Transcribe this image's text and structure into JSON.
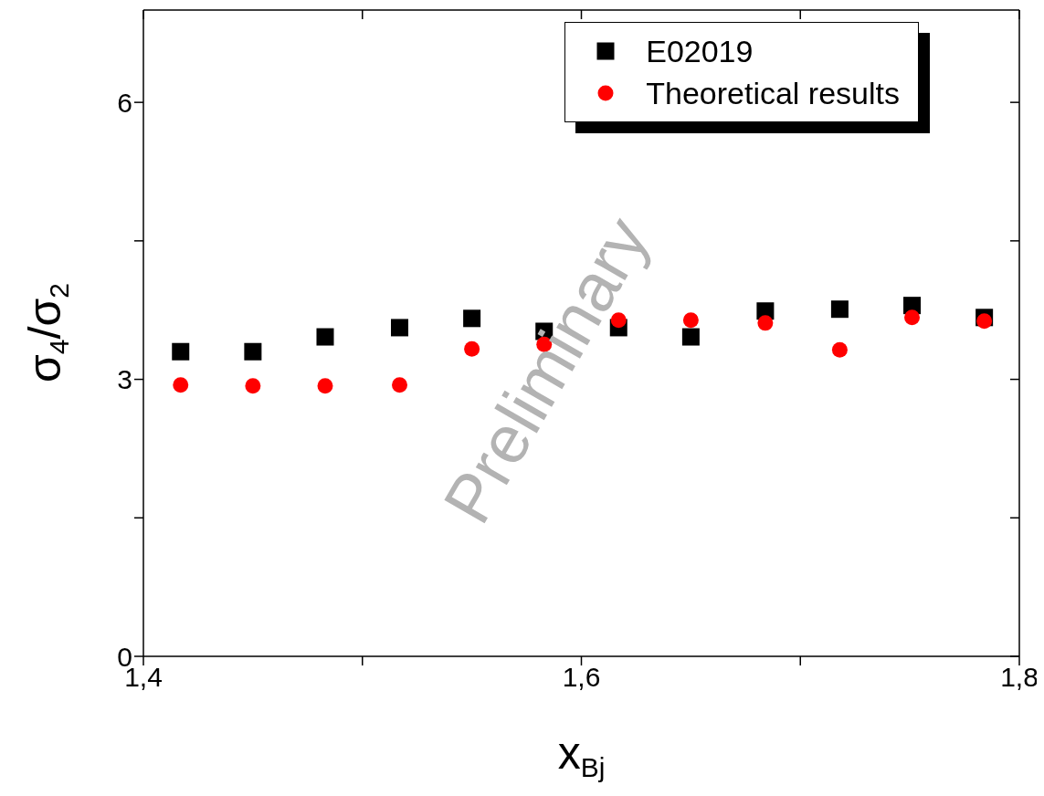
{
  "chart_data": {
    "type": "scatter",
    "xlabel": "x$_{Bj}$",
    "ylabel": "σ$_{4}$/σ$_{2}$",
    "xlim": [
      1.4,
      1.8
    ],
    "ylim": [
      0,
      7
    ],
    "xticks": [
      {
        "value": 1.4,
        "label": "1,4"
      },
      {
        "value": 1.5,
        "label": null
      },
      {
        "value": 1.6,
        "label": "1,6"
      },
      {
        "value": 1.7,
        "label": null
      },
      {
        "value": 1.8,
        "label": "1,8"
      }
    ],
    "yticks": [
      0,
      {
        "value": 1.5,
        "label": null
      },
      3,
      {
        "value": 4.5,
        "label": null
      },
      6
    ],
    "grid": false,
    "legend": "top right",
    "annotations": [
      "Preliminary"
    ],
    "series": [
      {
        "name": "E02019",
        "color": "#000000",
        "marker": "square",
        "x": [
          1.417,
          1.45,
          1.483,
          1.517,
          1.55,
          1.583,
          1.617,
          1.65,
          1.684,
          1.718,
          1.751,
          1.784
        ],
        "values": [
          3.3,
          3.3,
          3.46,
          3.56,
          3.66,
          3.52,
          3.56,
          3.46,
          3.74,
          3.76,
          3.8,
          3.67
        ]
      },
      {
        "name": "Theoretical results",
        "color": "#ff0000",
        "marker": "circle",
        "x": [
          1.417,
          1.45,
          1.483,
          1.517,
          1.55,
          1.583,
          1.617,
          1.65,
          1.684,
          1.718,
          1.751,
          1.784
        ],
        "values": [
          2.94,
          2.93,
          2.93,
          2.94,
          3.33,
          3.38,
          3.64,
          3.64,
          3.61,
          3.32,
          3.67,
          3.63
        ]
      }
    ]
  }
}
